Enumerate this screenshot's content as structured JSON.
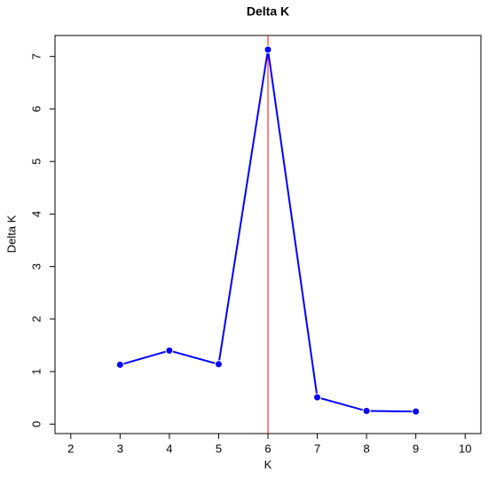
{
  "chart_data": {
    "type": "line",
    "title": "Delta K",
    "x_label": "K",
    "y_label": "Delta K",
    "x": [
      3,
      4,
      5,
      6,
      7,
      8,
      9
    ],
    "series": [
      {
        "name": "Delta K",
        "color": "#0000ff",
        "values": [
          1.13,
          1.4,
          1.14,
          7.13,
          0.51,
          0.25,
          0.24
        ]
      }
    ],
    "xlim": [
      1.68,
      10.32
    ],
    "ylim": [
      -0.18,
      7.4
    ],
    "xticks": [
      2,
      3,
      4,
      5,
      6,
      7,
      8,
      9,
      10
    ],
    "yticks": [
      0,
      1,
      2,
      3,
      4,
      5,
      6,
      7
    ],
    "vline": 6,
    "vline_color": "#ff0000",
    "grid": false
  }
}
